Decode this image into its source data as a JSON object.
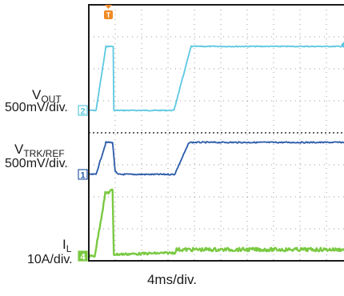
{
  "chart_data": {
    "type": "line",
    "title": "",
    "xlabel": "4ms/div.",
    "x_range_ms": [
      0,
      40
    ],
    "grid": true,
    "channels": [
      {
        "marker": "2",
        "label_main": "V",
        "label_sub": "OUT",
        "scale": "500mV/div.",
        "color": "#5bc8e0",
        "level_divs": [
          4.6,
          6.6
        ],
        "points_ms_divs": [
          [
            0,
            4.6
          ],
          [
            1.1,
            4.6
          ],
          [
            2.6,
            6.6
          ],
          [
            3.7,
            6.6
          ],
          [
            3.8,
            4.6
          ],
          [
            12.9,
            4.6
          ],
          [
            15.5,
            6.6
          ],
          [
            40,
            6.6
          ]
        ]
      },
      {
        "marker": "1",
        "label_main": "V",
        "label_sub": "TRK/REF",
        "scale": "500mV/div.",
        "color": "#2a5aa8",
        "level_divs": [
          2.6,
          3.6
        ],
        "points_ms_divs": [
          [
            0,
            2.6
          ],
          [
            1.1,
            2.6
          ],
          [
            2.6,
            3.6
          ],
          [
            3.6,
            3.6
          ],
          [
            4.0,
            2.7
          ],
          [
            4.4,
            2.6
          ],
          [
            13.0,
            2.6
          ],
          [
            15.2,
            3.6
          ],
          [
            40,
            3.6
          ]
        ]
      },
      {
        "marker": "4",
        "label_main": "I",
        "label_sub": "L",
        "scale": "10A/div.",
        "color": "#7ac943",
        "level_divs": [
          0,
          2.0
        ],
        "points_ms_divs": [
          [
            0,
            0.05
          ],
          [
            0.9,
            0.05
          ],
          [
            2.5,
            2.0
          ],
          [
            3.6,
            2.1
          ],
          [
            3.8,
            0.1
          ],
          [
            4.0,
            0.1
          ],
          [
            13.0,
            0.15
          ],
          [
            13.3,
            0.25
          ],
          [
            40,
            0.25
          ]
        ]
      }
    ],
    "trigger_marker": "T"
  }
}
